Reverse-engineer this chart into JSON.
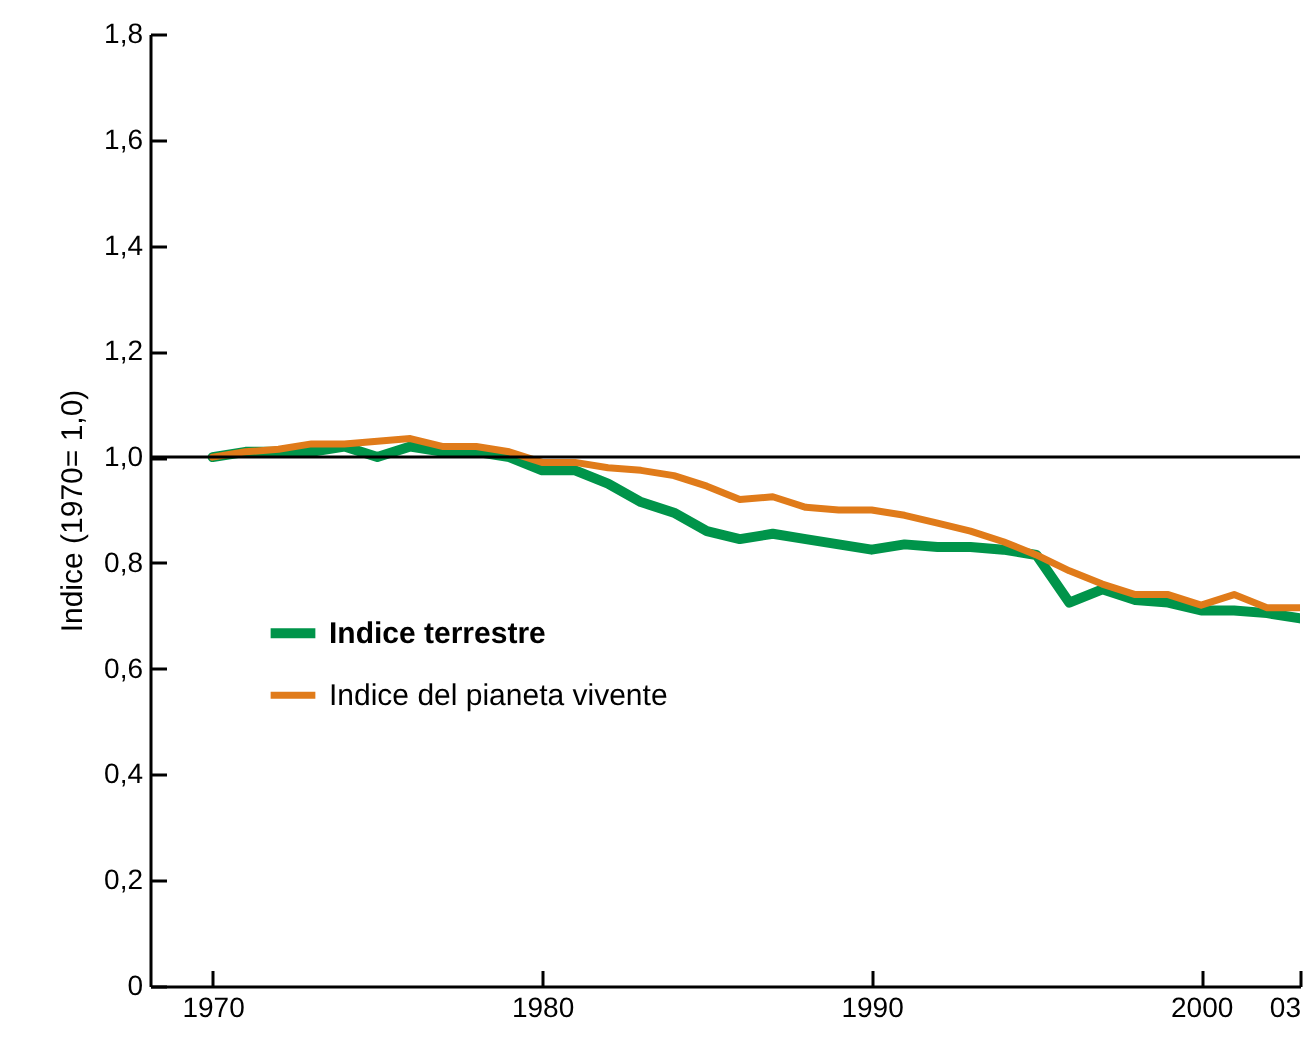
{
  "chart_data": {
    "type": "line",
    "ylabel": "Indice (1970= 1,0)",
    "x": [
      1970,
      1971,
      1972,
      1973,
      1974,
      1975,
      1976,
      1977,
      1978,
      1979,
      1980,
      1981,
      1982,
      1983,
      1984,
      1985,
      1986,
      1987,
      1988,
      1989,
      1990,
      1991,
      1992,
      1993,
      1994,
      1995,
      1996,
      1997,
      1998,
      1999,
      2000,
      2001,
      2002,
      2003
    ],
    "series": [
      {
        "name": "Indice terrestre",
        "color": "#00944a",
        "values": [
          1.0,
          1.01,
          1.01,
          1.01,
          1.02,
          1.0,
          1.02,
          1.01,
          1.01,
          1.0,
          0.975,
          0.975,
          0.95,
          0.915,
          0.895,
          0.86,
          0.845,
          0.855,
          0.845,
          0.835,
          0.825,
          0.835,
          0.83,
          0.83,
          0.825,
          0.815,
          0.725,
          0.75,
          0.73,
          0.725,
          0.71,
          0.71,
          0.705,
          0.695
        ]
      },
      {
        "name": "Indice del pianeta vivente",
        "color": "#e07b1a",
        "values": [
          1.0,
          1.01,
          1.015,
          1.025,
          1.025,
          1.03,
          1.035,
          1.02,
          1.02,
          1.01,
          0.99,
          0.99,
          0.98,
          0.975,
          0.965,
          0.945,
          0.92,
          0.925,
          0.905,
          0.9,
          0.9,
          0.89,
          0.875,
          0.86,
          0.84,
          0.815,
          0.785,
          0.76,
          0.74,
          0.74,
          0.72,
          0.74,
          0.715,
          0.715
        ]
      }
    ],
    "xlim": [
      1968.1,
      2003
    ],
    "xticks": [
      1970,
      1980,
      1990,
      2000,
      {
        "value": 2003,
        "label": "03"
      }
    ],
    "ylim": [
      0,
      1.8
    ],
    "yticks": [
      0,
      {
        "value": 0.2,
        "label": "0,2"
      },
      {
        "value": 0.4,
        "label": "0,4"
      },
      {
        "value": 0.6,
        "label": "0,6"
      },
      {
        "value": 0.8,
        "label": "0,8"
      },
      {
        "value": 1.0,
        "label": "1,0"
      },
      {
        "value": 1.2,
        "label": "1,2"
      },
      {
        "value": 1.4,
        "label": "1,4"
      },
      {
        "value": 1.6,
        "label": "1,6"
      },
      {
        "value": 1.8,
        "label": "1,8"
      }
    ],
    "ref_lines": [
      {
        "axis": "y",
        "value": 1.0,
        "color": "#000000"
      }
    ],
    "legend": "left",
    "grid": false
  }
}
